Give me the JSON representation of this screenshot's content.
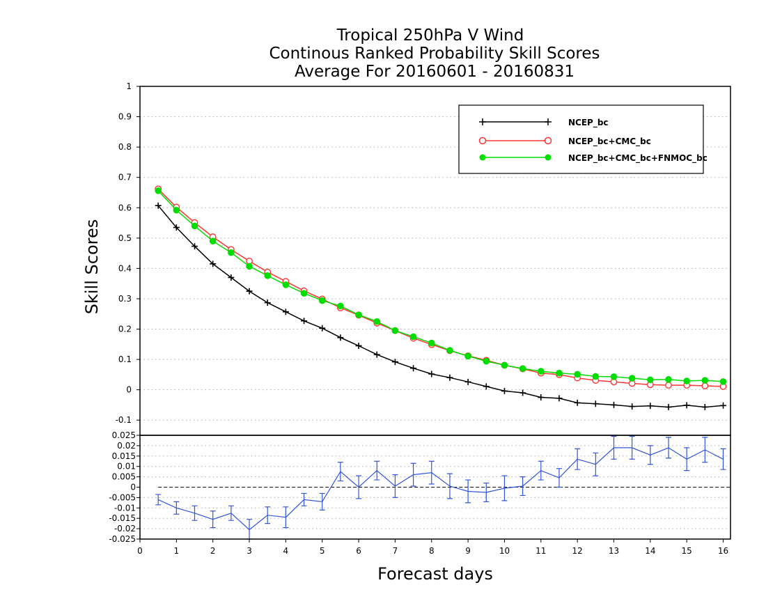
{
  "chart_data": [
    {
      "type": "line",
      "title_lines": [
        "Tropical 250hPa V Wind",
        "Continous Ranked Probability Skill Scores",
        "Average For 20160601 - 20160831"
      ],
      "xlabel": "Forecast days",
      "ylabel": "Skill Scores",
      "xlim": [
        0,
        16.2
      ],
      "ylim": [
        -0.15,
        1
      ],
      "yticks": [
        "-0.1",
        "0",
        "0.1",
        "0.2",
        "0.3",
        "0.4",
        "0.5",
        "0.6",
        "0.7",
        "0.8",
        "0.9",
        "1"
      ],
      "grid": true,
      "legend_position": "top-right",
      "x": [
        0.5,
        1,
        1.5,
        2,
        2.5,
        3,
        3.5,
        4,
        4.5,
        5,
        5.5,
        6,
        6.5,
        7,
        7.5,
        8,
        8.5,
        9,
        9.5,
        10,
        10.5,
        11,
        11.5,
        12,
        12.5,
        13,
        13.5,
        14,
        14.5,
        15,
        15.5,
        16
      ],
      "series": [
        {
          "name": "NCEP_bc",
          "color": "#000000",
          "marker": "plus",
          "values": [
            0.607,
            0.535,
            0.473,
            0.415,
            0.37,
            0.325,
            0.287,
            0.257,
            0.227,
            0.203,
            0.172,
            0.145,
            0.116,
            0.092,
            0.071,
            0.052,
            0.04,
            0.026,
            0.011,
            -0.004,
            -0.01,
            -0.025,
            -0.028,
            -0.043,
            -0.046,
            -0.05,
            -0.055,
            -0.053,
            -0.057,
            -0.051,
            -0.057,
            -0.052
          ]
        },
        {
          "name": "NCEP_bc+CMC_bc",
          "color": "#ff3333",
          "marker": "open-circle",
          "values": [
            0.662,
            0.602,
            0.551,
            0.504,
            0.462,
            0.424,
            0.388,
            0.357,
            0.326,
            0.299,
            0.27,
            0.246,
            0.22,
            0.195,
            0.17,
            0.149,
            0.129,
            0.112,
            0.097,
            0.081,
            0.069,
            0.055,
            0.05,
            0.039,
            0.031,
            0.026,
            0.021,
            0.017,
            0.015,
            0.015,
            0.013,
            0.011
          ]
        },
        {
          "name": "NCEP_bc+CMC_bc+FNMOC_bc",
          "color": "#00dd00",
          "marker": "filled-circle",
          "values": [
            0.656,
            0.592,
            0.54,
            0.49,
            0.452,
            0.407,
            0.376,
            0.346,
            0.318,
            0.294,
            0.276,
            0.247,
            0.225,
            0.195,
            0.175,
            0.154,
            0.13,
            0.111,
            0.094,
            0.081,
            0.07,
            0.061,
            0.055,
            0.051,
            0.044,
            0.043,
            0.038,
            0.033,
            0.034,
            0.029,
            0.031,
            0.027
          ]
        }
      ]
    },
    {
      "type": "line",
      "xlim": [
        0,
        16.2
      ],
      "ylim": [
        -0.025,
        0.025
      ],
      "yticks": [
        "-0.025",
        "-0.02",
        "-0.015",
        "-0.01",
        "-0.005",
        "0",
        "0.005",
        "0.01",
        "0.015",
        "0.02",
        "0.025"
      ],
      "xticks": [
        "0",
        "1",
        "2",
        "3",
        "4",
        "5",
        "6",
        "7",
        "8",
        "9",
        "10",
        "11",
        "12",
        "13",
        "14",
        "15",
        "16"
      ],
      "grid": true,
      "zero_line": true,
      "x": [
        0.5,
        1,
        1.5,
        2,
        2.5,
        3,
        3.5,
        4,
        4.5,
        5,
        5.5,
        6,
        6.5,
        7,
        7.5,
        8,
        8.5,
        9,
        9.5,
        10,
        10.5,
        11,
        11.5,
        12,
        12.5,
        13,
        13.5,
        14,
        14.5,
        15,
        15.5,
        16
      ],
      "series": [
        {
          "color": "#3355dd",
          "error_bars": true,
          "values": [
            -0.006,
            -0.01,
            -0.0125,
            -0.0155,
            -0.0125,
            -0.0205,
            -0.0135,
            -0.0145,
            -0.006,
            -0.007,
            0.0075,
            0.0,
            0.008,
            0.0005,
            0.006,
            0.007,
            0.0005,
            -0.002,
            -0.0025,
            -0.0005,
            0.0005,
            0.008,
            0.0045,
            0.0135,
            0.011,
            0.019,
            0.019,
            0.0155,
            0.019,
            0.0135,
            0.018,
            0.0135
          ],
          "err": [
            0.0025,
            0.003,
            0.0035,
            0.004,
            0.0035,
            0.005,
            0.004,
            0.005,
            0.003,
            0.004,
            0.0045,
            0.0055,
            0.0045,
            0.0055,
            0.0055,
            0.0055,
            0.006,
            0.0055,
            0.0045,
            0.006,
            0.0045,
            0.0045,
            0.0045,
            0.005,
            0.0055,
            0.0055,
            0.0055,
            0.0045,
            0.005,
            0.0055,
            0.006,
            0.005
          ]
        }
      ]
    }
  ]
}
